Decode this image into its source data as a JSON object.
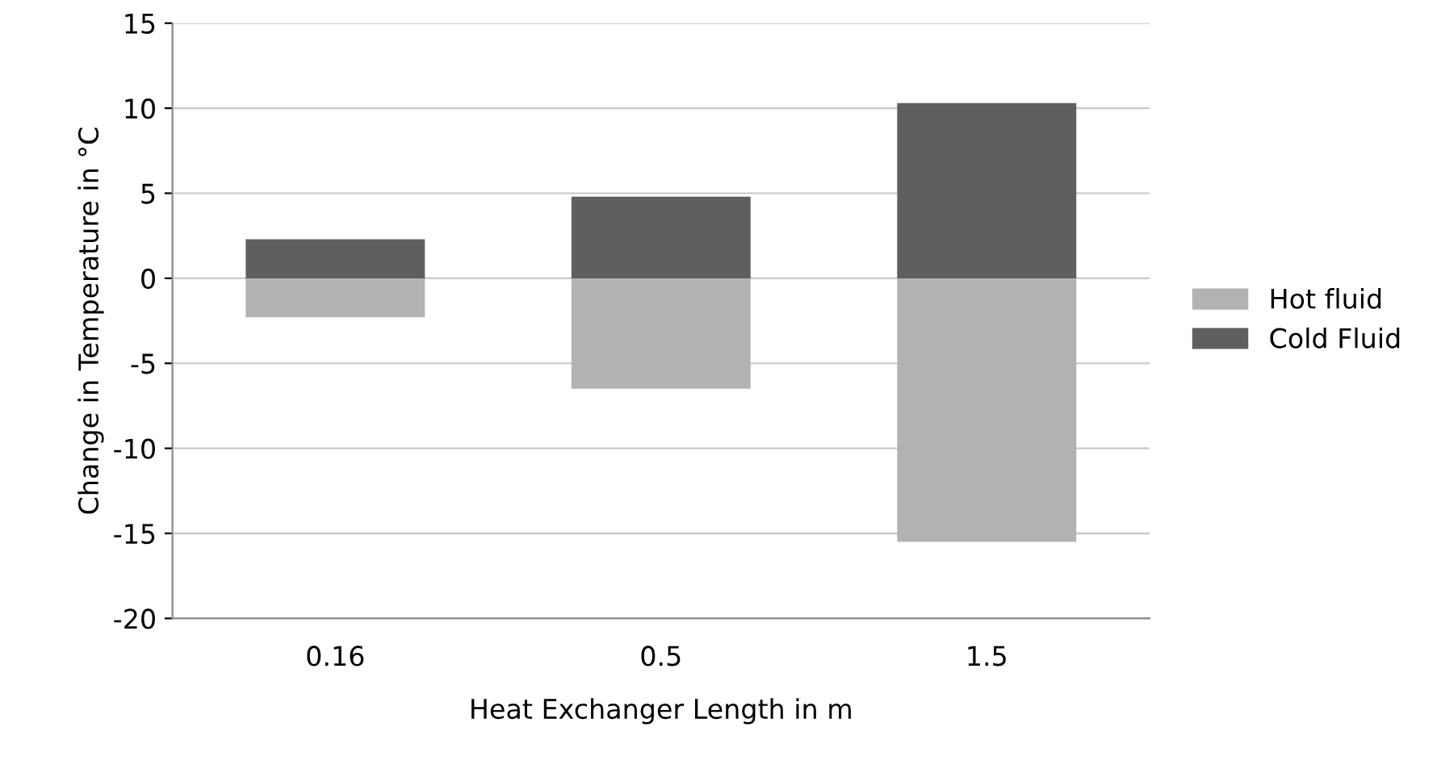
{
  "chart_data": {
    "type": "bar",
    "stacked": true,
    "xlabel": "Heat Exchanger Length in m",
    "ylabel": "Change in Temperature in °C",
    "categories": [
      "0.16",
      "0.5",
      "1.5"
    ],
    "series": [
      {
        "name": "Hot fluid",
        "color": "#b2b2b2",
        "values": [
          -2.3,
          -6.5,
          -15.5
        ]
      },
      {
        "name": "Cold Fluid",
        "color": "#5f5f5f",
        "values": [
          2.3,
          4.8,
          10.3
        ]
      }
    ],
    "ylim": [
      -20,
      15
    ],
    "yticks": [
      -20,
      -15,
      -10,
      -5,
      0,
      5,
      10,
      15
    ],
    "grid": "y",
    "legend": "right"
  }
}
